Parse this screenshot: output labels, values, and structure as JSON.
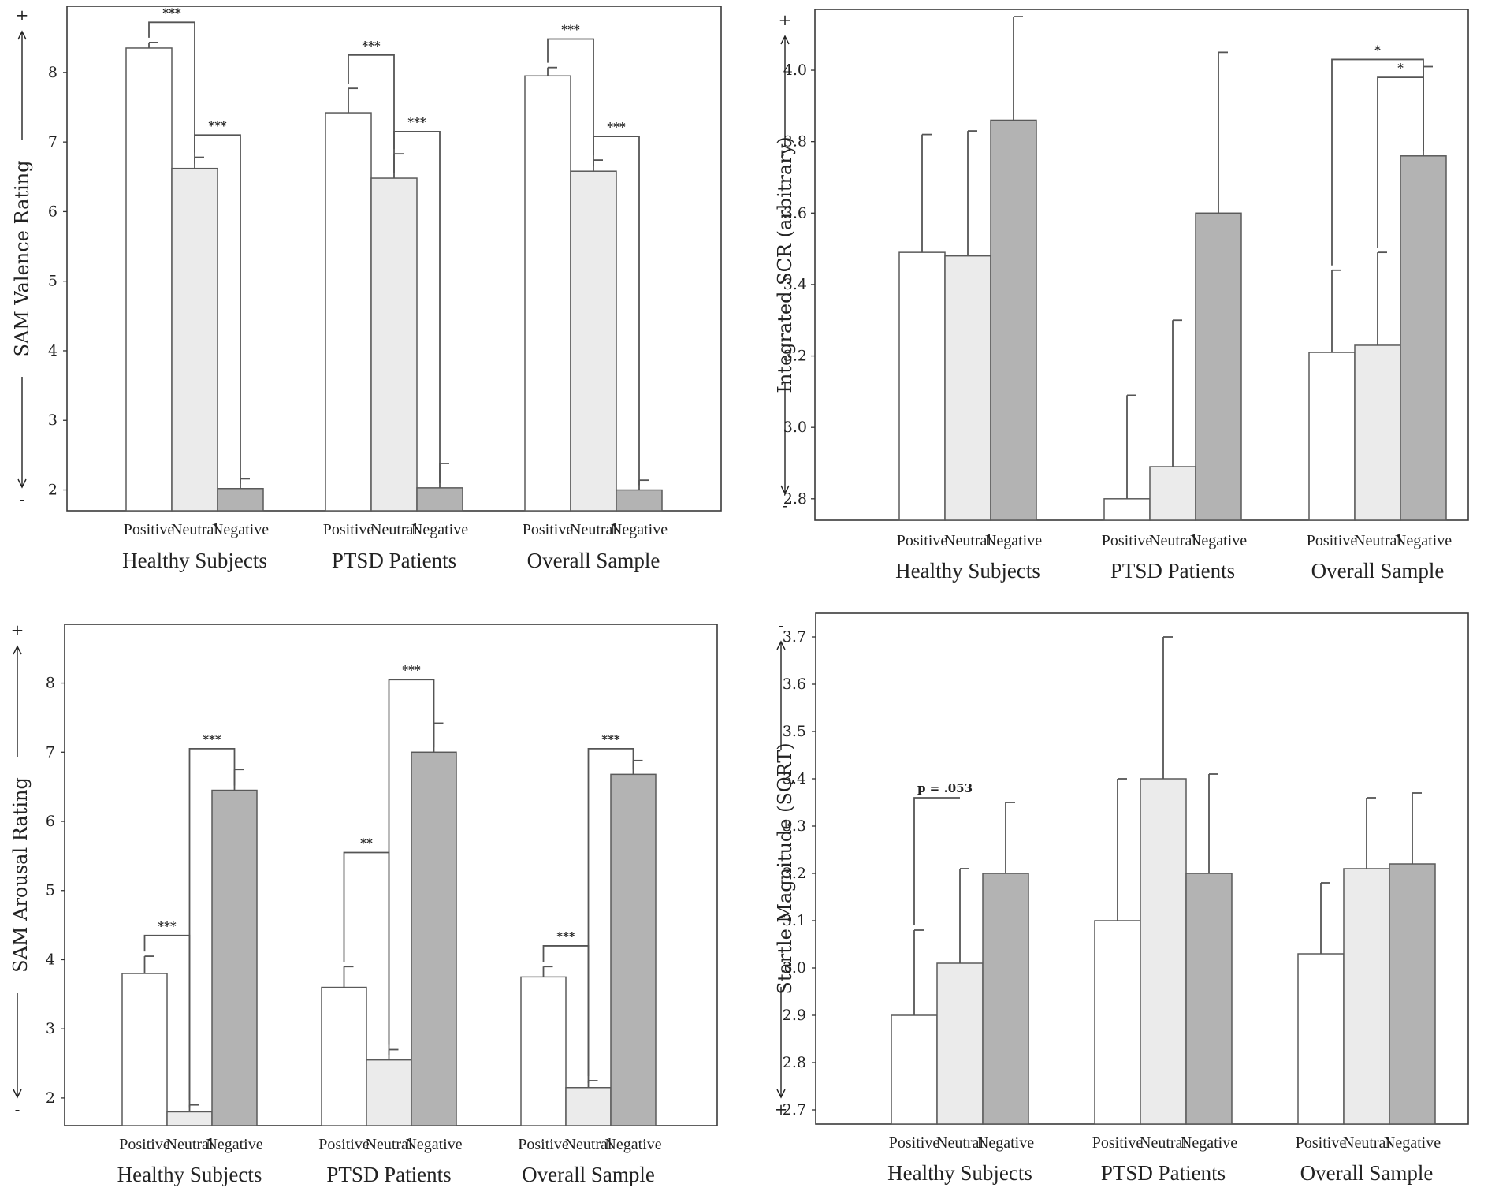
{
  "colors": {
    "positive": "#ffffff",
    "neutral": "#ebebeb",
    "negative": "#b3b3b3",
    "bar_stroke": "#5a5a5a"
  },
  "chart_data": [
    {
      "id": "valence",
      "type": "bar",
      "ylabel": "SAM Valence Rating",
      "ylim": [
        1.7,
        8.95
      ],
      "yticks": [
        2,
        3,
        4,
        5,
        6,
        7,
        8
      ],
      "tick_format": "int",
      "top_sign": "+",
      "bottom_sign": "-",
      "categories": [
        "Positive",
        "Neutral",
        "Negative"
      ],
      "groups": [
        "Healthy Subjects",
        "PTSD Patients",
        "Overall Sample"
      ],
      "series": [
        {
          "name": "Positive",
          "values": [
            8.35,
            7.42,
            7.95
          ],
          "errors": [
            0.08,
            0.35,
            0.12
          ]
        },
        {
          "name": "Neutral",
          "values": [
            6.62,
            6.48,
            6.58
          ],
          "errors": [
            0.16,
            0.35,
            0.16
          ]
        },
        {
          "name": "Negative",
          "values": [
            2.02,
            2.03,
            2.0
          ],
          "errors": [
            0.14,
            0.35,
            0.14
          ]
        }
      ],
      "significance": [
        {
          "group": 0,
          "from": 0,
          "to": 1,
          "label": "***",
          "level": 8.72
        },
        {
          "group": 0,
          "from": 1,
          "to": 2,
          "label": "***",
          "level": 7.1
        },
        {
          "group": 1,
          "from": 0,
          "to": 1,
          "label": "***",
          "level": 8.25
        },
        {
          "group": 1,
          "from": 1,
          "to": 2,
          "label": "***",
          "level": 7.15
        },
        {
          "group": 2,
          "from": 0,
          "to": 1,
          "label": "***",
          "level": 8.48
        },
        {
          "group": 2,
          "from": 1,
          "to": 2,
          "label": "***",
          "level": 7.08
        }
      ]
    },
    {
      "id": "scr",
      "type": "bar",
      "ylabel": "Integrated SCR (arbitrary)",
      "ylim": [
        2.74,
        4.17
      ],
      "yticks": [
        2.8,
        3.0,
        3.2,
        3.4,
        3.6,
        3.8,
        4.0
      ],
      "tick_format": "fixed1",
      "top_sign": "+",
      "bottom_sign": "-",
      "categories": [
        "Positive",
        "Neutral",
        "Negative"
      ],
      "groups": [
        "Healthy Subjects",
        "PTSD Patients",
        "Overall Sample"
      ],
      "series": [
        {
          "name": "Positive",
          "values": [
            3.49,
            2.8,
            3.21
          ],
          "errors": [
            0.33,
            0.29,
            0.23
          ]
        },
        {
          "name": "Neutral",
          "values": [
            3.48,
            2.89,
            3.23
          ],
          "errors": [
            0.35,
            0.41,
            0.26
          ]
        },
        {
          "name": "Negative",
          "values": [
            3.86,
            3.6,
            3.76
          ],
          "errors": [
            0.29,
            0.45,
            0.25
          ]
        }
      ],
      "significance": [
        {
          "group": 2,
          "from": 0,
          "to": 2,
          "label": "*",
          "level": 4.03
        },
        {
          "group": 2,
          "from": 1,
          "to": 2,
          "label": "*",
          "level": 3.98
        }
      ]
    },
    {
      "id": "arousal",
      "type": "bar",
      "ylabel": "SAM Arousal Rating",
      "ylim": [
        1.6,
        8.85
      ],
      "yticks": [
        2,
        3,
        4,
        5,
        6,
        7,
        8
      ],
      "tick_format": "int",
      "top_sign": "+",
      "bottom_sign": "-",
      "categories": [
        "Positive",
        "Neutral",
        "Negative"
      ],
      "groups": [
        "Healthy Subjects",
        "PTSD Patients",
        "Overall Sample"
      ],
      "series": [
        {
          "name": "Positive",
          "values": [
            3.8,
            3.6,
            3.75
          ],
          "errors": [
            0.25,
            0.3,
            0.15
          ]
        },
        {
          "name": "Neutral",
          "values": [
            1.8,
            2.55,
            2.15
          ],
          "errors": [
            0.1,
            0.15,
            0.1
          ]
        },
        {
          "name": "Negative",
          "values": [
            6.45,
            7.0,
            6.68
          ],
          "errors": [
            0.3,
            0.42,
            0.2
          ]
        }
      ],
      "significance": [
        {
          "group": 0,
          "from": 0,
          "to": 1,
          "label": "***",
          "level": 4.35
        },
        {
          "group": 0,
          "from": 1,
          "to": 2,
          "label": "***",
          "level": 7.05
        },
        {
          "group": 1,
          "from": 0,
          "to": 1,
          "label": "**",
          "level": 5.55
        },
        {
          "group": 1,
          "from": 1,
          "to": 2,
          "label": "***",
          "level": 8.05
        },
        {
          "group": 2,
          "from": 0,
          "to": 1,
          "label": "***",
          "level": 4.2
        },
        {
          "group": 2,
          "from": 1,
          "to": 2,
          "label": "***",
          "level": 7.05
        }
      ]
    },
    {
      "id": "startle",
      "type": "bar",
      "ylabel": "Startle Magnitude (SQRT)",
      "ylim": [
        2.67,
        3.75
      ],
      "yticks": [
        2.7,
        2.8,
        2.9,
        3.0,
        3.1,
        3.2,
        3.3,
        3.4,
        3.5,
        3.6,
        3.7
      ],
      "tick_format": "fixed1",
      "top_sign": "-",
      "bottom_sign": "+",
      "categories": [
        "Positive",
        "Neutral",
        "Negative"
      ],
      "groups": [
        "Healthy Subjects",
        "PTSD Patients",
        "Overall Sample"
      ],
      "series": [
        {
          "name": "Positive",
          "values": [
            2.9,
            3.1,
            3.03
          ],
          "errors": [
            0.18,
            0.3,
            0.15
          ]
        },
        {
          "name": "Neutral",
          "values": [
            3.01,
            3.4,
            3.21
          ],
          "errors": [
            0.2,
            0.3,
            0.15
          ]
        },
        {
          "name": "Negative",
          "values": [
            3.2,
            3.2,
            3.22
          ],
          "errors": [
            0.15,
            0.21,
            0.15
          ]
        }
      ],
      "significance": [
        {
          "group": 0,
          "from": 0,
          "to": 1,
          "label": "p = .053",
          "level": 3.36,
          "open_right": true
        }
      ]
    }
  ]
}
